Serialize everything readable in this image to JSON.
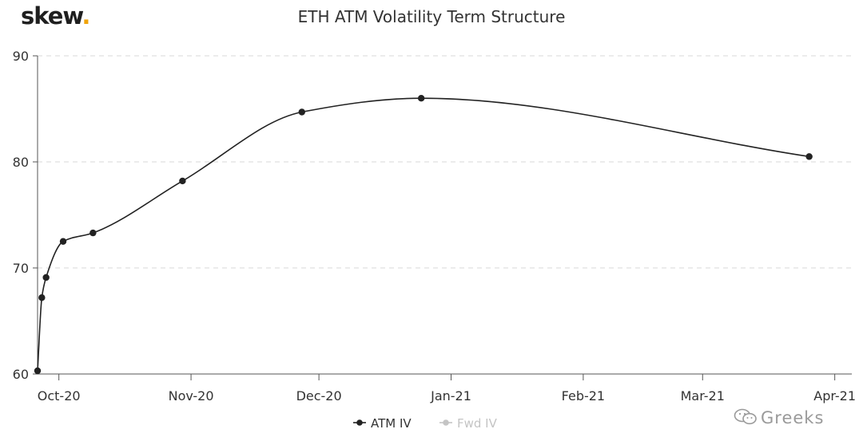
{
  "brand": {
    "name": "skew",
    "dot": "."
  },
  "colors": {
    "line": "#222222",
    "grid": "#d9d9d9",
    "axis": "#555555",
    "inactive": "#c4c4c4",
    "brand_accent": "#f0a30a"
  },
  "watermark": {
    "text": "Greeks",
    "icon": "wechat-icon"
  },
  "chart_data": {
    "type": "line",
    "title": "ETH ATM Volatility Term Structure",
    "xlabel": "",
    "ylabel": "",
    "x_axis_type": "date",
    "xlim": [
      "2020-09-26",
      "2021-04-05"
    ],
    "ylim": [
      60,
      90
    ],
    "yticks": [
      60,
      70,
      80,
      90
    ],
    "xticks": [
      {
        "date": "2020-10-01",
        "label": "Oct-20"
      },
      {
        "date": "2020-11-01",
        "label": "Nov-20"
      },
      {
        "date": "2020-12-01",
        "label": "Dec-20"
      },
      {
        "date": "2021-01-01",
        "label": "Jan-21"
      },
      {
        "date": "2021-02-01",
        "label": "Feb-21"
      },
      {
        "date": "2021-03-01",
        "label": "Mar-21"
      },
      {
        "date": "2021-04-01",
        "label": "Apr-21"
      }
    ],
    "grid": true,
    "legend_position": "bottom-center",
    "series": [
      {
        "name": "ATM IV",
        "active": true,
        "points": [
          {
            "x": "2020-09-26",
            "y": 60.3
          },
          {
            "x": "2020-09-27",
            "y": 67.2
          },
          {
            "x": "2020-09-28",
            "y": 69.1
          },
          {
            "x": "2020-10-02",
            "y": 72.5
          },
          {
            "x": "2020-10-09",
            "y": 73.3
          },
          {
            "x": "2020-10-30",
            "y": 78.2
          },
          {
            "x": "2020-11-27",
            "y": 84.7
          },
          {
            "x": "2020-12-25",
            "y": 86.0
          },
          {
            "x": "2021-03-26",
            "y": 80.5
          }
        ]
      },
      {
        "name": "Fwd IV",
        "active": false,
        "points": []
      }
    ]
  }
}
